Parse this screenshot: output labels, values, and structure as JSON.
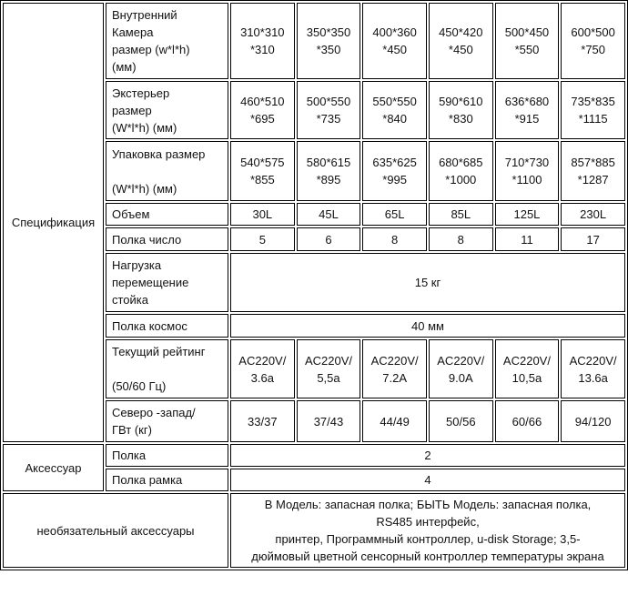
{
  "groups": {
    "spec": "Спецификация",
    "accessory": "Аксессуар",
    "optional": "необязательный  аксессуары"
  },
  "spec_rows": [
    {
      "label": "Внутренний\n Камера\nразмер (w*l*h)\n(мм)",
      "values": [
        "310*310\n*310",
        "350*350\n*350",
        "400*360\n*450",
        "450*420\n*450",
        "500*450\n*550",
        "600*500\n*750"
      ]
    },
    {
      "label": "Экстерьер\n размер\n(W*l*h) (мм)",
      "values": [
        "460*510\n*695",
        "500*550\n*735",
        "550*550\n*840",
        "590*610\n*830",
        "636*680\n*915",
        "735*835\n*1115"
      ]
    },
    {
      "label": "Упаковка  размер\n\n(W*l*h) (мм)",
      "values": [
        "540*575\n*855",
        "580*615\n*895",
        "635*625\n*995",
        "680*685\n*1000",
        "710*730\n*1100",
        "857*885\n*1287"
      ]
    },
    {
      "label": "Объем",
      "values": [
        "30L",
        "45L",
        "65L",
        "85L",
        "125L",
        "230L"
      ]
    },
    {
      "label": "Полка  число",
      "values": [
        "5",
        "6",
        "8",
        "8",
        "11",
        "17"
      ]
    },
    {
      "label": "Нагрузка\n перемещение\n стойка",
      "merged": "15 кг"
    },
    {
      "label": "Полка  космос",
      "merged": "40 мм"
    },
    {
      "label": "Текущий  рейтинг\n\n(50/60 Гц)",
      "values": [
        "AC220V/\n3.6a",
        "AC220V/\n5,5a",
        "AC220V/\n7.2A",
        "AC220V/\n9.0A",
        "AC220V/\n10,5a",
        "AC220V/\n13.6a"
      ]
    },
    {
      "label": "Северо -запад/\nГВт  (кг)",
      "values": [
        "33/37",
        "37/43",
        "44/49",
        "50/56",
        "60/66",
        "94/120"
      ]
    }
  ],
  "accessory_rows": [
    {
      "label": "Полка",
      "merged": "2"
    },
    {
      "label": "Полка  рамка",
      "merged": "4"
    }
  ],
  "optional_text": "В  Модель: запасная полка;  БЫТЬ  Модель: запасная полка,\nRS485  интерфейс,\nпринтер,  Программный контроллер, u-disk Storage; 3,5-\nдюймовый цветной сенсорный контроллер температуры экрана"
}
